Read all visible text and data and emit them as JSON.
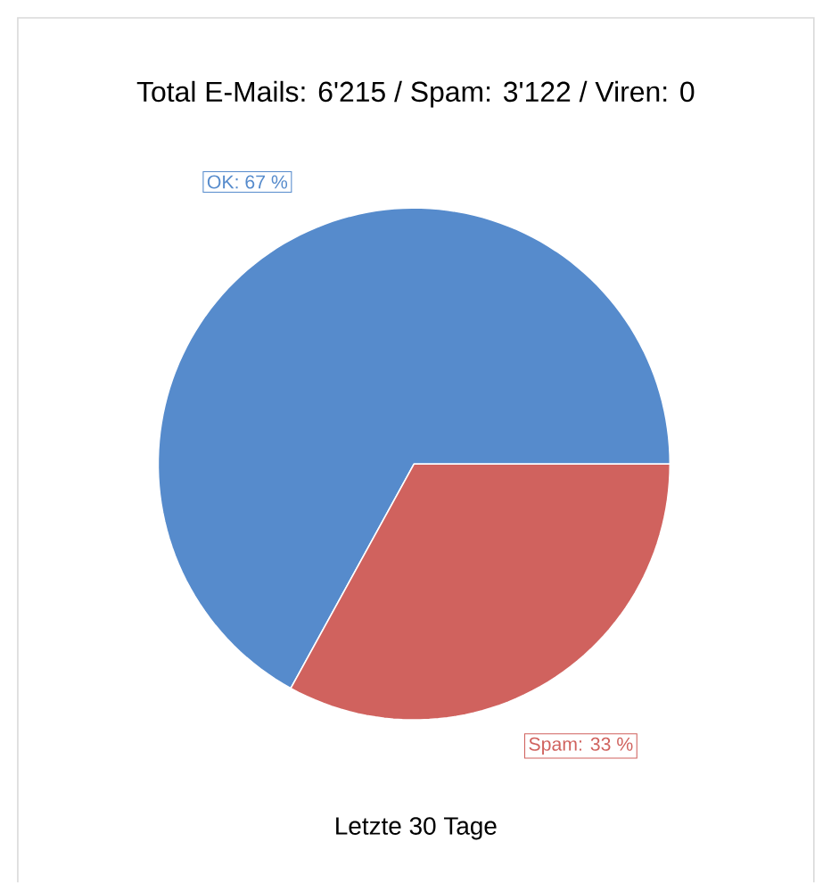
{
  "chart_data": {
    "type": "pie",
    "title": "Total E-Mails: 6'215 / Spam: 3'122 / Viren: 0",
    "categories": [
      "OK: 67 %",
      "Spam: 33 %"
    ],
    "values": [
      67,
      33
    ],
    "colors": [
      "#568bcc",
      "#d0625e"
    ],
    "annotations": [
      "Letzte 30 Tage"
    ]
  }
}
